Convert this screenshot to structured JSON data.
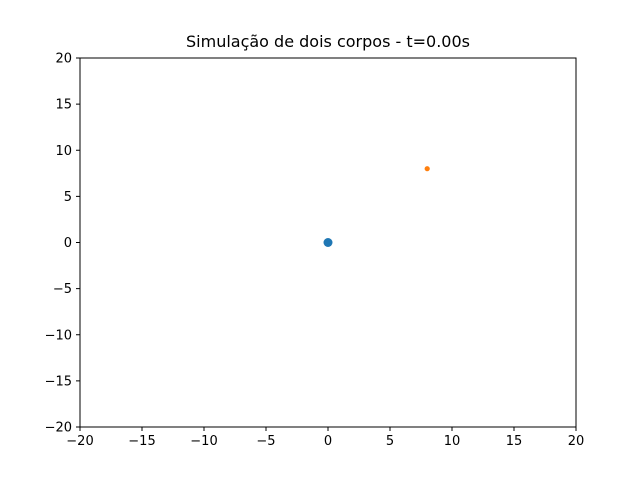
{
  "chart_data": {
    "type": "scatter",
    "title": "Simulação de dois corpos - t=0.00s",
    "xlabel": "",
    "ylabel": "",
    "xlim": [
      -20,
      20
    ],
    "ylim": [
      -20,
      20
    ],
    "xticks": [
      -20,
      -15,
      -10,
      -5,
      0,
      5,
      10,
      15,
      20
    ],
    "yticks": [
      -20,
      -15,
      -10,
      -5,
      0,
      5,
      10,
      15,
      20
    ],
    "xtick_labels": [
      "−20",
      "−15",
      "−10",
      "−5",
      "0",
      "5",
      "10",
      "15",
      "20"
    ],
    "ytick_labels": [
      "−20",
      "−15",
      "−10",
      "−5",
      "0",
      "5",
      "10",
      "15",
      "20"
    ],
    "grid": false,
    "legend": "none",
    "series": [
      {
        "x": [
          0
        ],
        "y": [
          0
        ],
        "color": "#1f77b4",
        "marker": "large-circle"
      },
      {
        "x": [
          8
        ],
        "y": [
          8
        ],
        "color": "#ff7f0e",
        "marker": "small-circle"
      }
    ]
  }
}
